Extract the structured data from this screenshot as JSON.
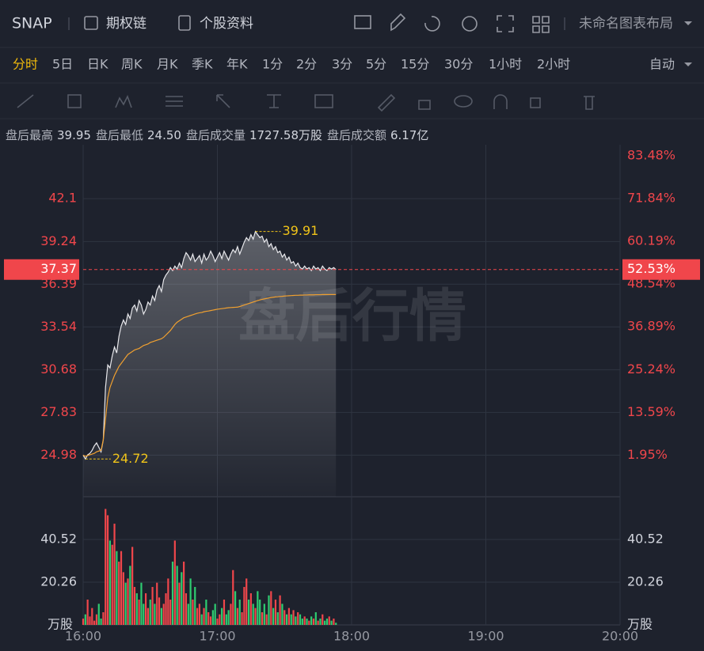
{
  "toolbar": {
    "symbol": "SNAP",
    "option_chain": "期权链",
    "profile": "个股资料",
    "layout": "未命名图表布局",
    "auto": "自动"
  },
  "periods": [
    "分时",
    "5日",
    "日K",
    "周K",
    "月K",
    "季K",
    "年K",
    "1分",
    "2分",
    "3分",
    "5分",
    "15分",
    "30分",
    "1小时",
    "2小时"
  ],
  "active_period": 0,
  "info": [
    {
      "label": "盘后最高",
      "value": "39.95"
    },
    {
      "label": "盘后最低",
      "value": "24.50"
    },
    {
      "label": "盘后成交量",
      "value": "1727.58万股"
    },
    {
      "label": "盘后成交额",
      "value": "6.17亿"
    }
  ],
  "chart_data": {
    "type": "line",
    "watermark": "盘后行情",
    "x": [
      0,
      1,
      2,
      3,
      4,
      5,
      6,
      7,
      8,
      9,
      10,
      11,
      12,
      13,
      14,
      15,
      16,
      17,
      18,
      19,
      20,
      21,
      22,
      23,
      24,
      25,
      26,
      27,
      28,
      29,
      30,
      31,
      32,
      33,
      34,
      35,
      36,
      37,
      38,
      39,
      40,
      41,
      42,
      43,
      44,
      45,
      46,
      47,
      48,
      49,
      50,
      51,
      52,
      53,
      54,
      55,
      56,
      57,
      58,
      59,
      60,
      61,
      62,
      63,
      64,
      65,
      66,
      67,
      68,
      69,
      70,
      71,
      72,
      73,
      74,
      75,
      76,
      77,
      78,
      79,
      80,
      81,
      82,
      83,
      84,
      85,
      86,
      87,
      88,
      89,
      90,
      91,
      92,
      93,
      94,
      95,
      96,
      97,
      98,
      99,
      100,
      101,
      102,
      103,
      104,
      105,
      106,
      107,
      108,
      109,
      110,
      111,
      112,
      113
    ],
    "xlim": [
      0,
      240
    ],
    "xticks": [
      {
        "value": 0,
        "label": "16:00"
      },
      {
        "value": 60,
        "label": "17:00"
      },
      {
        "value": 120,
        "label": "18:00"
      },
      {
        "value": 180,
        "label": "19:00"
      },
      {
        "value": 240,
        "label": "20:00"
      }
    ],
    "ylim": [
      22.2,
      45.7
    ],
    "yticks": [
      24.98,
      27.83,
      30.68,
      33.54,
      36.39,
      39.24,
      42.1
    ],
    "y2lim": [
      -9.4,
      86.5
    ],
    "y2ticks": [
      {
        "value": 1.95,
        "label": "1.95%"
      },
      {
        "value": 13.59,
        "label": "13.59%"
      },
      {
        "value": 25.24,
        "label": "25.24%"
      },
      {
        "value": 36.89,
        "label": "36.89%"
      },
      {
        "value": 48.54,
        "label": "48.54%"
      },
      {
        "value": 60.19,
        "label": "60.19%"
      },
      {
        "value": 71.84,
        "label": "71.84%"
      },
      {
        "value": 83.48,
        "label": "83.48%"
      }
    ],
    "grid": true,
    "series": [
      {
        "color": "#e8e8ec",
        "values": [
          24.98,
          24.72,
          25.0,
          25.1,
          25.3,
          25.6,
          25.8,
          25.5,
          25.2,
          26.0,
          29.5,
          31.0,
          30.8,
          31.6,
          32.2,
          31.8,
          32.9,
          33.6,
          34.0,
          33.7,
          34.4,
          34.1,
          34.8,
          35.0,
          34.6,
          35.3,
          35.0,
          34.4,
          34.7,
          35.2,
          35.0,
          35.6,
          35.3,
          36.0,
          36.3,
          35.9,
          36.7,
          37.0,
          37.2,
          37.5,
          37.3,
          37.6,
          37.4,
          37.8,
          37.5,
          38.1,
          38.5,
          38.3,
          38.0,
          38.4,
          37.9,
          38.1,
          38.3,
          37.8,
          38.4,
          38.0,
          38.2,
          38.6,
          38.3,
          37.9,
          38.2,
          38.5,
          38.1,
          38.6,
          38.3,
          38.0,
          38.4,
          38.7,
          38.5,
          38.9,
          38.4,
          38.8,
          39.2,
          39.5,
          39.3,
          39.7,
          39.4,
          39.91,
          39.7,
          39.5,
          39.6,
          39.2,
          39.4,
          38.9,
          39.1,
          38.7,
          38.9,
          38.5,
          38.6,
          38.2,
          38.4,
          38.0,
          38.2,
          37.8,
          37.9,
          37.6,
          37.8,
          37.5,
          37.4,
          37.6,
          37.4,
          37.5,
          37.3,
          37.6,
          37.4,
          37.5,
          37.3,
          37.6,
          37.4,
          37.3,
          37.5,
          37.4,
          37.5,
          37.37
        ]
      },
      {
        "color": "#f0a030",
        "values": [
          24.98,
          24.9,
          24.95,
          25.0,
          25.05,
          25.1,
          25.2,
          25.25,
          25.3,
          26.0,
          27.4,
          28.8,
          29.5,
          29.9,
          30.3,
          30.6,
          30.9,
          31.1,
          31.3,
          31.5,
          31.7,
          31.8,
          31.9,
          32.0,
          32.05,
          32.1,
          32.2,
          32.3,
          32.35,
          32.4,
          32.5,
          32.55,
          32.6,
          32.65,
          32.7,
          32.75,
          32.85,
          33.0,
          33.15,
          33.3,
          33.5,
          33.7,
          33.85,
          33.95,
          34.05,
          34.15,
          34.2,
          34.25,
          34.3,
          34.35,
          34.4,
          34.45,
          34.48,
          34.5,
          34.55,
          34.58,
          34.6,
          34.63,
          34.66,
          34.69,
          34.72,
          34.74,
          34.76,
          34.78,
          34.8,
          34.82,
          34.83,
          34.84,
          34.85,
          34.86,
          34.9,
          34.95,
          35.0,
          35.05,
          35.1,
          35.15,
          35.2,
          35.25,
          35.3,
          35.34,
          35.38,
          35.41,
          35.44,
          35.47,
          35.5,
          35.52,
          35.54,
          35.55,
          35.57,
          35.58,
          35.6,
          35.61,
          35.62,
          35.63,
          35.64,
          35.65,
          35.65,
          35.66,
          35.66,
          35.67,
          35.67,
          35.68,
          35.68,
          35.68,
          35.69,
          35.69,
          35.69,
          35.7,
          35.7,
          35.7,
          35.7,
          35.7,
          35.7,
          35.7
        ]
      }
    ],
    "last_price": 37.37,
    "last_change": {
      "value": 52.53,
      "label": "52.53%"
    },
    "annotations": [
      {
        "x": 77,
        "value": 39.91
      },
      {
        "x": 1,
        "value": 24.72
      }
    ],
    "annotation_color": "#f0c419",
    "volume": {
      "values": [
        3,
        5,
        12,
        4,
        8,
        2,
        5,
        10,
        3,
        6,
        55,
        52,
        40,
        38,
        48,
        35,
        30,
        35,
        25,
        20,
        22,
        28,
        37,
        18,
        15,
        12,
        20,
        10,
        15,
        8,
        12,
        18,
        10,
        20,
        13,
        8,
        10,
        15,
        22,
        12,
        30,
        40,
        28,
        20,
        25,
        30,
        15,
        10,
        22,
        12,
        18,
        8,
        10,
        5,
        8,
        12,
        6,
        4,
        7,
        10,
        3,
        5,
        8,
        12,
        5,
        7,
        10,
        26,
        16,
        8,
        12,
        6,
        18,
        22,
        12,
        15,
        10,
        8,
        16,
        12,
        6,
        10,
        5,
        14,
        16,
        8,
        12,
        6,
        14,
        10,
        7,
        5,
        8,
        5,
        7,
        4,
        6,
        5,
        3,
        4,
        3,
        2,
        4,
        3,
        6,
        2,
        3,
        5,
        2,
        3,
        4,
        2,
        3,
        1
      ],
      "ylim": [
        0,
        60.78
      ],
      "yticks": [
        20.26,
        40.52
      ],
      "unit": "万股",
      "up_color": "#f0464b",
      "down_color": "#2ecc71"
    }
  }
}
